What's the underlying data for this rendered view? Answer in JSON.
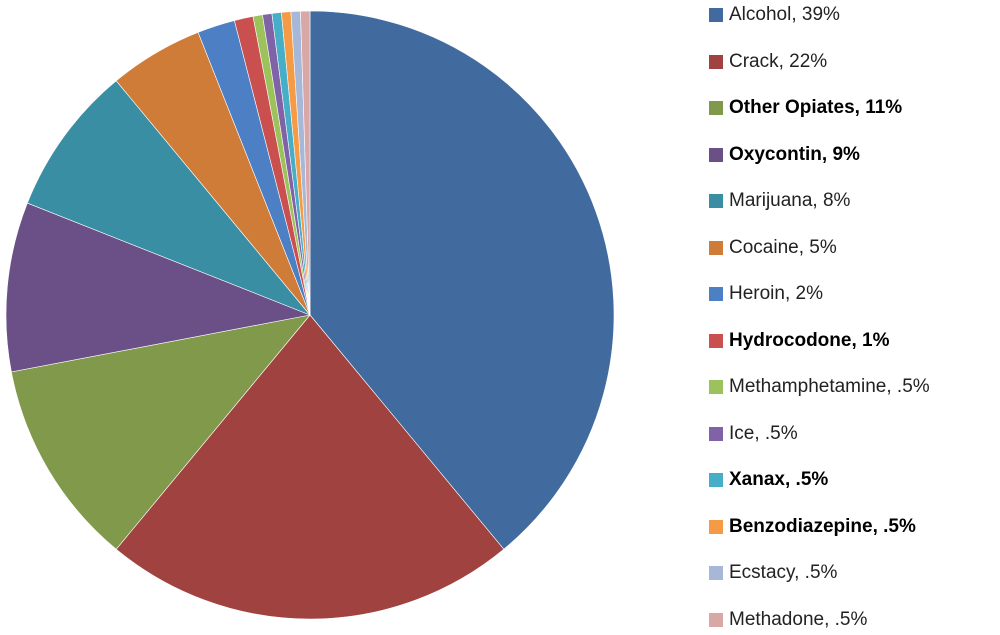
{
  "chart_data": {
    "type": "pie",
    "title": "",
    "slices": [
      {
        "label": "Alcohol, 39%",
        "value": 39,
        "color": "#416a9e",
        "bold": false
      },
      {
        "label": "Crack, 22%",
        "value": 22,
        "color": "#a04240",
        "bold": false
      },
      {
        "label": "Other Opiates, 11%",
        "value": 11,
        "color": "#80994a",
        "bold": true
      },
      {
        "label": "Oxycontin, 9%",
        "value": 9,
        "color": "#6a5086",
        "bold": true
      },
      {
        "label": "Marijuana, 8%",
        "value": 8,
        "color": "#3a8ea4",
        "bold": false
      },
      {
        "label": "Cocaine, 5%",
        "value": 5,
        "color": "#d07c39",
        "bold": false
      },
      {
        "label": "Heroin, 2%",
        "value": 2,
        "color": "#4c7fc3",
        "bold": false
      },
      {
        "label": "Hydrocodone, 1%",
        "value": 1,
        "color": "#c9504e",
        "bold": true
      },
      {
        "label": "Methamphetamine, .5%",
        "value": 0.5,
        "color": "#9cc25b",
        "bold": false
      },
      {
        "label": "Ice, .5%",
        "value": 0.5,
        "color": "#8063a6",
        "bold": false
      },
      {
        "label": "Xanax, .5%",
        "value": 0.5,
        "color": "#46aec6",
        "bold": true
      },
      {
        "label": "Benzodiazepine, .5%",
        "value": 0.5,
        "color": "#f59a45",
        "bold": true
      },
      {
        "label": "Ecstacy, .5%",
        "value": 0.5,
        "color": "#a6b7d8",
        "bold": false
      },
      {
        "label": "Methadone, .5%",
        "value": 0.5,
        "color": "#d9a7a6",
        "bold": false
      }
    ],
    "legend_position": "right"
  }
}
